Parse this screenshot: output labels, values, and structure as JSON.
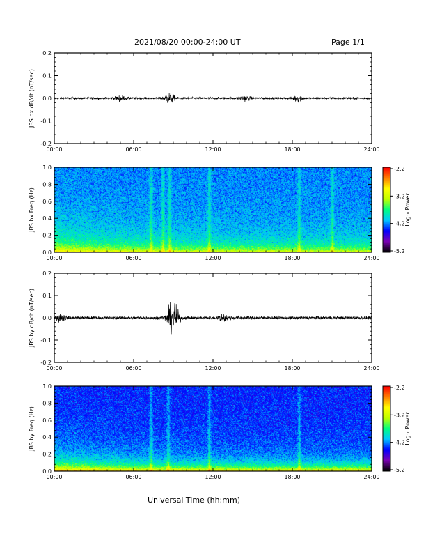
{
  "header": {
    "title": "2021/08/20  00:00-24:00 UT",
    "page": "Page 1/1"
  },
  "x_axis_label": "Universal Time (hh:mm)",
  "time_ticks": [
    "00:00",
    "06:00",
    "12:00",
    "18:00",
    "24:00"
  ],
  "colorbar": {
    "label": "Log₁₀ Power",
    "ticks": [
      "-2.2",
      "-3.2",
      "-4.2",
      "-5.2"
    ],
    "colors": [
      "#000000",
      "#7b00b4",
      "#0000ff",
      "#00c8ff",
      "#00ff80",
      "#c0ff00",
      "#ffff00",
      "#ff8000",
      "#ff0000"
    ]
  },
  "chart_data": [
    {
      "type": "line",
      "ylabel": "JBS bx dB/dt (nT/sec)",
      "ylim": [
        -0.2,
        0.2
      ],
      "yticks": [
        "0.2",
        "0.1",
        "0.0",
        "-0.1",
        "-0.2"
      ],
      "xlim_hours": [
        0,
        24
      ],
      "baseline": 0.0,
      "noise_amplitude": 0.008,
      "events": [
        {
          "t_hours": 5.0,
          "amplitude": 0.02
        },
        {
          "t_hours": 8.7,
          "amplitude": 0.04
        },
        {
          "t_hours": 14.4,
          "amplitude": 0.02
        },
        {
          "t_hours": 18.4,
          "amplitude": 0.025
        }
      ]
    },
    {
      "type": "heatmap",
      "ylabel": "JBS bx Freq (Hz)",
      "ylim": [
        0.0,
        1.0
      ],
      "yticks": [
        "1.0",
        "0.8",
        "0.6",
        "0.4",
        "0.2",
        "0.0"
      ],
      "xlim_hours": [
        0,
        24
      ],
      "zlim_log10": [
        -5.2,
        -2.2
      ],
      "background_log10": -4.2,
      "low_freq_enhancement_log10": -3.4,
      "bright_columns_hours": [
        7.3,
        8.2,
        8.7,
        11.7,
        18.5,
        21.0
      ]
    },
    {
      "type": "line",
      "ylabel": "JBS by dB/dt (nT/sec)",
      "ylim": [
        -0.2,
        0.2
      ],
      "yticks": [
        "0.2",
        "0.1",
        "0.0",
        "-0.1",
        "-0.2"
      ],
      "xlim_hours": [
        0,
        24
      ],
      "baseline": 0.0,
      "noise_amplitude": 0.012,
      "events": [
        {
          "t_hours": 0.5,
          "amplitude": 0.025
        },
        {
          "t_hours": 8.8,
          "amplitude": 0.06
        },
        {
          "t_hours": 9.1,
          "amplitude": 0.07
        },
        {
          "t_hours": 12.8,
          "amplitude": 0.025
        }
      ]
    },
    {
      "type": "heatmap",
      "ylabel": "JBS by Freq (Hz)",
      "ylim": [
        0.0,
        1.0
      ],
      "yticks": [
        "1.0",
        "0.8",
        "0.6",
        "0.4",
        "0.2",
        "0.0"
      ],
      "xlim_hours": [
        0,
        24
      ],
      "zlim_log10": [
        -5.2,
        -2.2
      ],
      "background_log10": -4.4,
      "low_freq_enhancement_log10": -3.2,
      "bright_columns_hours": [
        7.3,
        8.6,
        11.7,
        18.5
      ]
    }
  ]
}
